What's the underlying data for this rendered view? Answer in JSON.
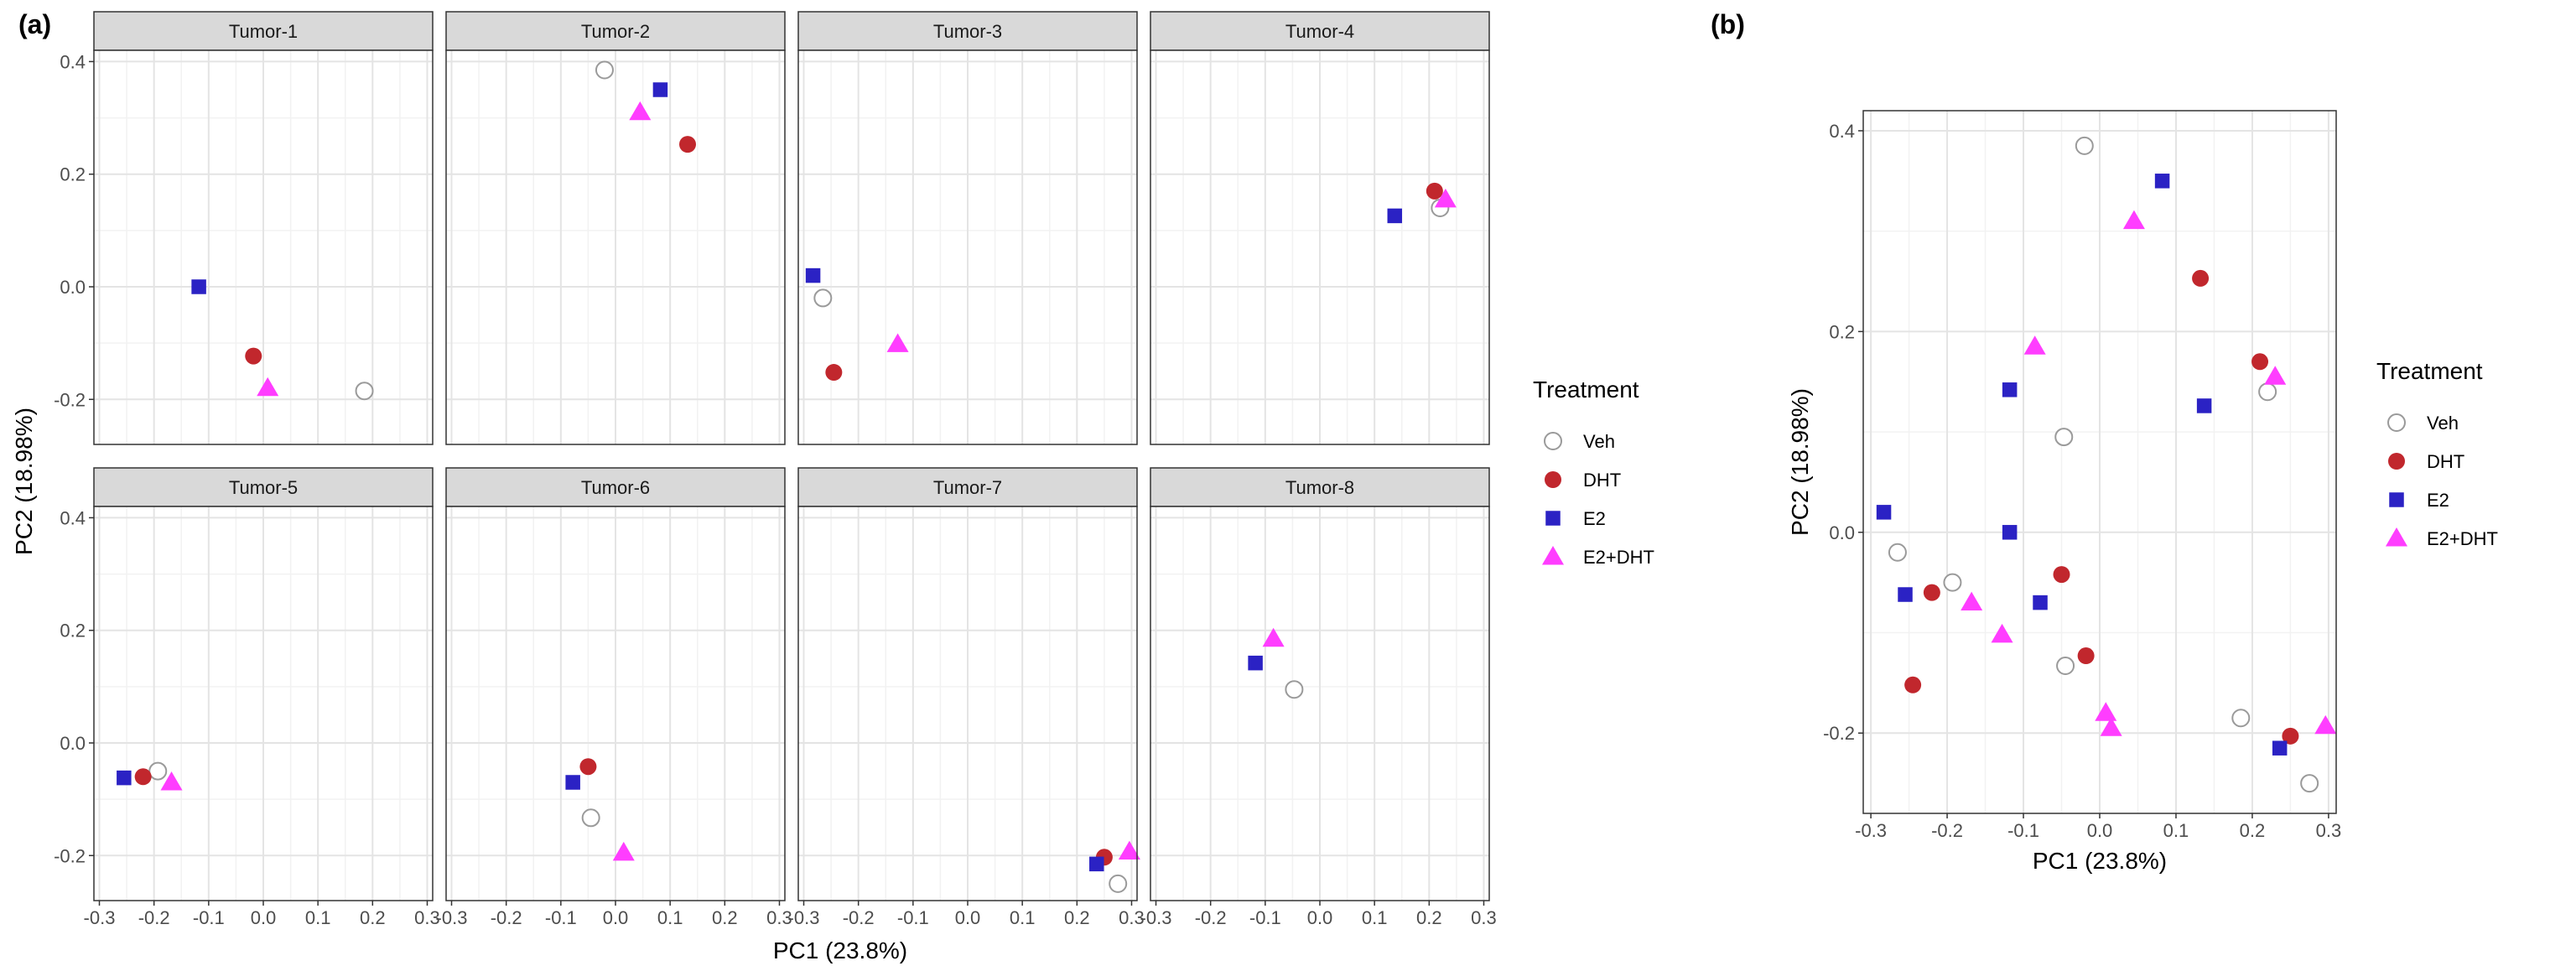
{
  "chart_data": [
    {
      "type": "scatter",
      "tag": "(a)",
      "xlabel": "PC1 (23.8%)",
      "ylabel": "PC2 (18.98%)",
      "xlim": [
        -0.31,
        0.31
      ],
      "ylim": [
        -0.28,
        0.42
      ],
      "xticks": [
        -0.3,
        -0.2,
        -0.1,
        0.0,
        0.1,
        0.2,
        0.3
      ],
      "xtick_labels": [
        "-0.3",
        "-0.2",
        "-0.1",
        "0.0",
        "0.1",
        "0.2",
        "0.3"
      ],
      "yticks": [
        -0.2,
        0.0,
        0.2,
        0.4
      ],
      "ytick_labels": [
        "-0.2",
        "0.0",
        "0.2",
        "0.4"
      ],
      "grid": true,
      "legend": {
        "title": "Treatment",
        "position": "right",
        "entries": [
          "Veh",
          "DHT",
          "E2",
          "E2+DHT"
        ]
      },
      "facets": [
        {
          "label": "Tumor-1",
          "points": [
            {
              "series": "Veh",
              "x": 0.185,
              "y": -0.185
            },
            {
              "series": "DHT",
              "x": -0.018,
              "y": -0.123
            },
            {
              "series": "E2",
              "x": -0.118,
              "y": 0.0
            },
            {
              "series": "E2+DHT",
              "x": 0.008,
              "y": -0.18
            }
          ]
        },
        {
          "label": "Tumor-2",
          "points": [
            {
              "series": "Veh",
              "x": -0.02,
              "y": 0.385
            },
            {
              "series": "DHT",
              "x": 0.132,
              "y": 0.253
            },
            {
              "series": "E2",
              "x": 0.082,
              "y": 0.35
            },
            {
              "series": "E2+DHT",
              "x": 0.045,
              "y": 0.31
            }
          ]
        },
        {
          "label": "Tumor-3",
          "points": [
            {
              "series": "Veh",
              "x": -0.265,
              "y": -0.02
            },
            {
              "series": "DHT",
              "x": -0.245,
              "y": -0.152
            },
            {
              "series": "E2",
              "x": -0.283,
              "y": 0.02
            },
            {
              "series": "E2+DHT",
              "x": -0.128,
              "y": -0.102
            }
          ]
        },
        {
          "label": "Tumor-4",
          "points": [
            {
              "series": "Veh",
              "x": 0.22,
              "y": 0.14
            },
            {
              "series": "DHT",
              "x": 0.21,
              "y": 0.17
            },
            {
              "series": "E2",
              "x": 0.137,
              "y": 0.126
            },
            {
              "series": "E2+DHT",
              "x": 0.23,
              "y": 0.155
            }
          ]
        },
        {
          "label": "Tumor-5",
          "points": [
            {
              "series": "Veh",
              "x": -0.193,
              "y": -0.05
            },
            {
              "series": "DHT",
              "x": -0.22,
              "y": -0.06
            },
            {
              "series": "E2",
              "x": -0.255,
              "y": -0.062
            },
            {
              "series": "E2+DHT",
              "x": -0.168,
              "y": -0.07
            }
          ]
        },
        {
          "label": "Tumor-6",
          "points": [
            {
              "series": "Veh",
              "x": -0.045,
              "y": -0.133
            },
            {
              "series": "DHT",
              "x": -0.05,
              "y": -0.042
            },
            {
              "series": "E2",
              "x": -0.078,
              "y": -0.07
            },
            {
              "series": "E2+DHT",
              "x": 0.015,
              "y": -0.195
            }
          ]
        },
        {
          "label": "Tumor-7",
          "points": [
            {
              "series": "Veh",
              "x": 0.275,
              "y": -0.25
            },
            {
              "series": "DHT",
              "x": 0.25,
              "y": -0.203
            },
            {
              "series": "E2",
              "x": 0.236,
              "y": -0.215
            },
            {
              "series": "E2+DHT",
              "x": 0.296,
              "y": -0.193
            }
          ]
        },
        {
          "label": "Tumor-8",
          "points": [
            {
              "series": "Veh",
              "x": -0.047,
              "y": 0.095
            },
            {
              "series": "DHT",
              "x": null,
              "y": null
            },
            {
              "series": "E2",
              "x": -0.118,
              "y": 0.142
            },
            {
              "series": "E2+DHT",
              "x": -0.085,
              "y": 0.185
            }
          ]
        }
      ]
    },
    {
      "type": "scatter",
      "tag": "(b)",
      "xlabel": "PC1 (23.8%)",
      "ylabel": "PC2 (18.98%)",
      "xlim": [
        -0.31,
        0.31
      ],
      "ylim": [
        -0.28,
        0.42
      ],
      "xticks": [
        -0.3,
        -0.2,
        -0.1,
        0.0,
        0.1,
        0.2,
        0.3
      ],
      "xtick_labels": [
        "-0.3",
        "-0.2",
        "-0.1",
        "0.0",
        "0.1",
        "0.2",
        "0.3"
      ],
      "yticks": [
        -0.2,
        0.0,
        0.2,
        0.4
      ],
      "ytick_labels": [
        "-0.2",
        "0.0",
        "0.2",
        "0.4"
      ],
      "grid": true,
      "legend": {
        "title": "Treatment",
        "position": "right",
        "entries": [
          "Veh",
          "DHT",
          "E2",
          "E2+DHT"
        ]
      },
      "series": [
        {
          "name": "Veh",
          "points": [
            [
              0.185,
              -0.185
            ],
            [
              -0.02,
              0.385
            ],
            [
              -0.265,
              -0.02
            ],
            [
              0.22,
              0.14
            ],
            [
              -0.193,
              -0.05
            ],
            [
              -0.045,
              -0.133
            ],
            [
              0.275,
              -0.25
            ],
            [
              -0.047,
              0.095
            ]
          ]
        },
        {
          "name": "DHT",
          "points": [
            [
              -0.018,
              -0.123
            ],
            [
              0.132,
              0.253
            ],
            [
              -0.245,
              -0.152
            ],
            [
              0.21,
              0.17
            ],
            [
              -0.22,
              -0.06
            ],
            [
              -0.05,
              -0.042
            ],
            [
              0.25,
              -0.203
            ]
          ]
        },
        {
          "name": "E2",
          "points": [
            [
              -0.118,
              0.0
            ],
            [
              0.082,
              0.35
            ],
            [
              -0.283,
              0.02
            ],
            [
              0.137,
              0.126
            ],
            [
              -0.255,
              -0.062
            ],
            [
              -0.078,
              -0.07
            ],
            [
              0.236,
              -0.215
            ],
            [
              -0.118,
              0.142
            ]
          ]
        },
        {
          "name": "E2+DHT",
          "points": [
            [
              0.008,
              -0.18
            ],
            [
              0.045,
              0.31
            ],
            [
              -0.128,
              -0.102
            ],
            [
              0.23,
              0.155
            ],
            [
              -0.168,
              -0.07
            ],
            [
              0.015,
              -0.195
            ],
            [
              0.296,
              -0.193
            ],
            [
              -0.085,
              0.185
            ]
          ]
        }
      ]
    }
  ],
  "styles": {
    "colors": {
      "Veh": "#ffffff",
      "DHT": "#c1272d",
      "E2": "#2b22c4",
      "E2+DHT": "#ff3dff"
    },
    "veh_stroke": "#9a9a9a",
    "panel_border": "#333333",
    "strip_fill": "#d9d9d9",
    "grid_major": "#e4e4e4",
    "grid_minor": "#f2f2f2"
  }
}
